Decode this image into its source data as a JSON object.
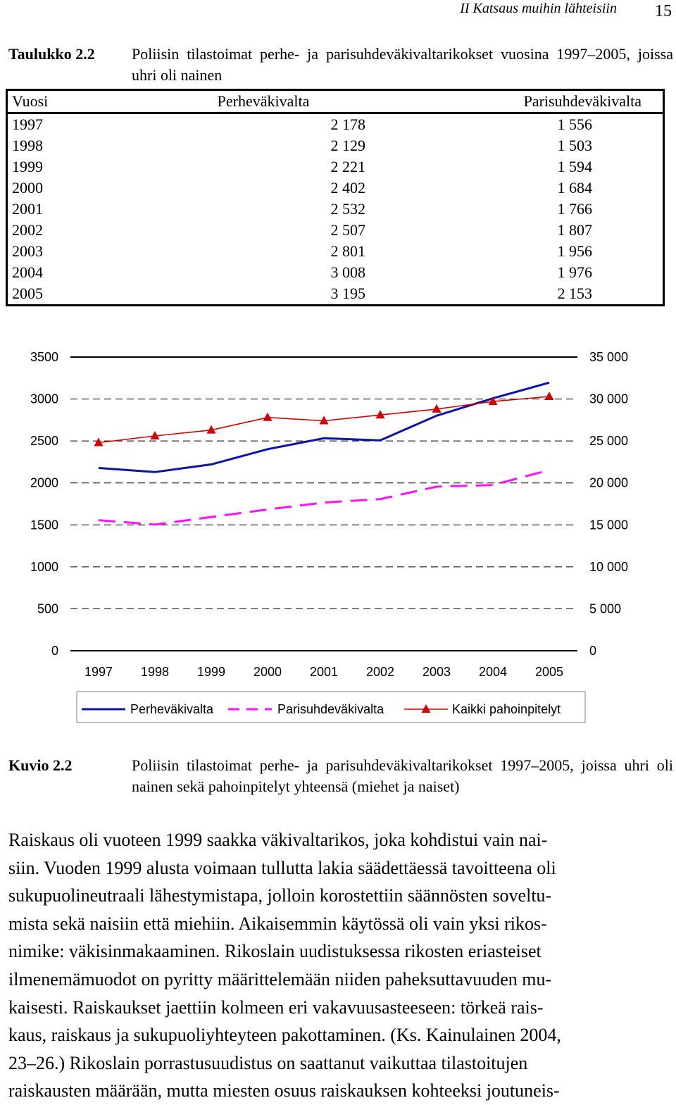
{
  "header": {
    "running_title": "II  Katsaus muihin lähteisiin",
    "page_number": "15"
  },
  "table_caption": {
    "label": "Taulukko 2.2",
    "text": "Poliisin tilastoimat perhe- ja parisuhdeväkivaltarikokset vuosina 1997–2005, joissa uhri oli nainen"
  },
  "table": {
    "headers": [
      "Vuosi",
      "Perheväkivalta",
      "Parisuhdeväkivalta"
    ],
    "rows": [
      [
        "1997",
        "2 178",
        "1 556"
      ],
      [
        "1998",
        "2 129",
        "1 503"
      ],
      [
        "1999",
        "2 221",
        "1 594"
      ],
      [
        "2000",
        "2 402",
        "1 684"
      ],
      [
        "2001",
        "2 532",
        "1 766"
      ],
      [
        "2002",
        "2 507",
        "1 807"
      ],
      [
        "2003",
        "2 801",
        "1 956"
      ],
      [
        "2004",
        "3 008",
        "1 976"
      ],
      [
        "2005",
        "3 195",
        "2 153"
      ]
    ]
  },
  "chart_data": {
    "type": "line",
    "x": [
      "1997",
      "1998",
      "1999",
      "2000",
      "2001",
      "2002",
      "2003",
      "2004",
      "2005"
    ],
    "left_axis": {
      "ylim": [
        0,
        3500
      ],
      "ticks": [
        "0",
        "500",
        "1000",
        "1500",
        "2000",
        "2500",
        "3000",
        "3500"
      ]
    },
    "right_axis": {
      "ylim": [
        0,
        35000
      ],
      "ticks": [
        "0",
        "5 000",
        "10 000",
        "15 000",
        "20 000",
        "25 000",
        "30 000",
        "35 000"
      ]
    },
    "grid": "dashed horizontal",
    "legend_position": "bottom",
    "series": [
      {
        "name": "Perheväkivalta",
        "axis": "left",
        "style": "solid",
        "color": "#0a14a8",
        "values": [
          2178,
          2129,
          2221,
          2402,
          2532,
          2507,
          2801,
          3008,
          3195
        ]
      },
      {
        "name": "Parisuhdeväkivalta",
        "axis": "left",
        "style": "dashed",
        "color": "#ff10ff",
        "values": [
          1556,
          1503,
          1594,
          1684,
          1766,
          1807,
          1956,
          1976,
          2153
        ]
      },
      {
        "name": "Kaikki pahoinpitelyt",
        "axis": "right",
        "style": "solid-triangle",
        "color": "#d40000",
        "values": [
          24800,
          25600,
          26300,
          27800,
          27400,
          28100,
          28800,
          29700,
          30300
        ]
      }
    ]
  },
  "figure_caption": {
    "label": "Kuvio 2.2",
    "text": "Poliisin tilastoimat perhe- ja parisuhdeväkivaltarikokset 1997–2005, joissa uhri oli nainen sekä pahoinpitelyt yhteensä (miehet ja naiset)"
  },
  "body_lines": [
    "Raiskaus oli vuoteen 1999 saakka väkivaltarikos, joka kohdistui vain nai-",
    "siin. Vuoden 1999 alusta voimaan tullutta lakia säädettäessä tavoitteena oli",
    "sukupuolineutraali lähestymistapa, jolloin korostettiin säännösten soveltu-",
    "mista sekä naisiin että miehiin. Aikaisemmin käytössä oli vain yksi rikos-",
    "nimike: väkisinmakaaminen. Rikoslain uudistuksessa rikosten eriasteiset",
    "ilmenemämuodot on pyritty määrittelemään niiden paheksuttavuuden mu-",
    "kaisesti. Raiskaukset jaettiin kolmeen eri vakavuusasteeseen: törkeä rais-",
    "kaus, raiskaus ja sukupuoliyhteyteen pakottaminen. (Ks. Kainulainen 2004,",
    "23–26.) Rikoslain porrastusuudistus on saattanut vaikuttaa tilastoitujen",
    "raiskausten määrään, mutta miesten osuus raiskauksen kohteeksi joutuneis-"
  ]
}
